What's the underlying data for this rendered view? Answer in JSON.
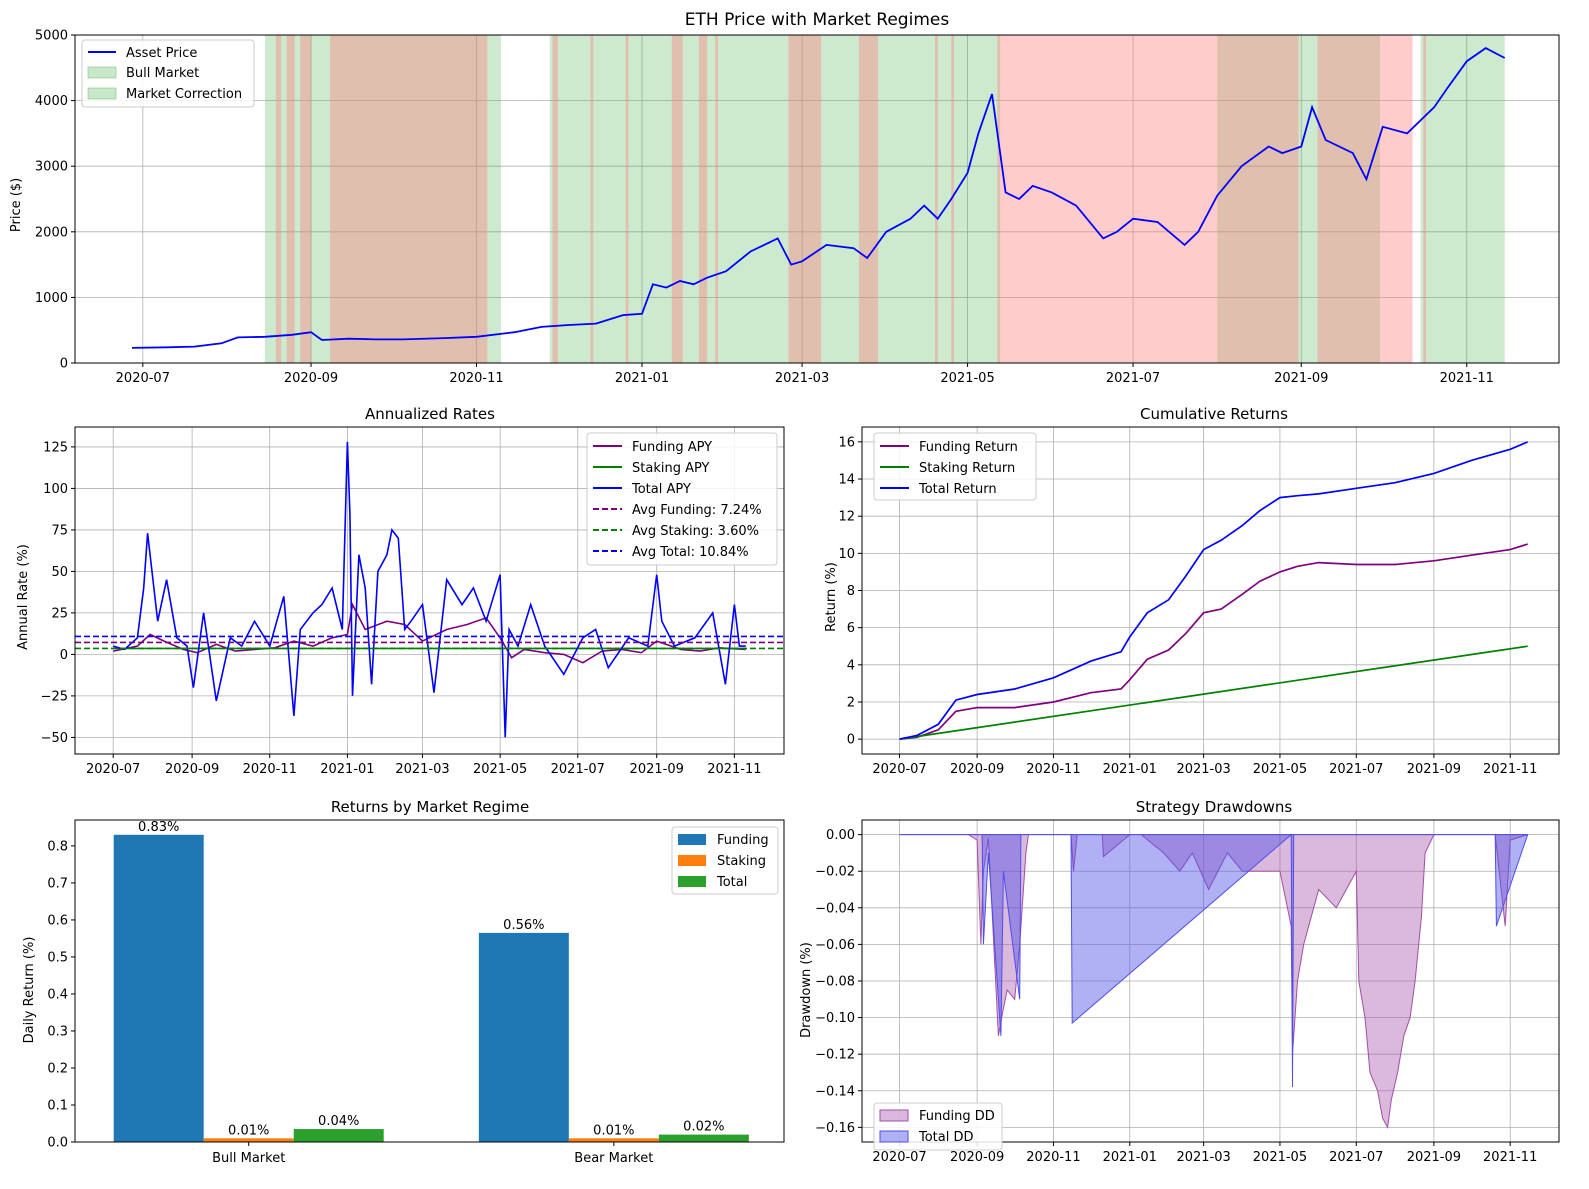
{
  "chart_data": [
    {
      "type": "line",
      "title": "ETH Price with Market Regimes",
      "xlabel": "",
      "ylabel": "Price ($)",
      "x_ticks": [
        "2020-07",
        "2020-09",
        "2020-11",
        "2021-01",
        "2021-03",
        "2021-05",
        "2021-07",
        "2021-09",
        "2021-11"
      ],
      "ylim": [
        0,
        5000
      ],
      "y_ticks": [
        0,
        1000,
        2000,
        3000,
        4000,
        5000
      ],
      "grid": true,
      "legend_position": "top-left",
      "legend": [
        "Asset Price",
        "Bull Market",
        "Market Correction"
      ],
      "colors": {
        "price": "#0000ff",
        "bull": "#4caf50",
        "correction": "#ff7f7f",
        "overlap": "#c8a791"
      },
      "series": [
        {
          "name": "Asset Price",
          "x": [
            "2020-06-27",
            "2020-07-10",
            "2020-07-20",
            "2020-07-30",
            "2020-08-05",
            "2020-08-15",
            "2020-08-25",
            "2020-09-01",
            "2020-09-05",
            "2020-09-15",
            "2020-09-25",
            "2020-10-05",
            "2020-10-20",
            "2020-11-01",
            "2020-11-15",
            "2020-11-25",
            "2020-12-05",
            "2020-12-15",
            "2020-12-25",
            "2021-01-01",
            "2021-01-05",
            "2021-01-10",
            "2021-01-15",
            "2021-01-20",
            "2021-01-25",
            "2021-02-01",
            "2021-02-10",
            "2021-02-20",
            "2021-02-25",
            "2021-03-01",
            "2021-03-10",
            "2021-03-20",
            "2021-03-25",
            "2021-04-01",
            "2021-04-10",
            "2021-04-15",
            "2021-04-20",
            "2021-04-25",
            "2021-05-01",
            "2021-05-05",
            "2021-05-10",
            "2021-05-15",
            "2021-05-20",
            "2021-05-25",
            "2021-06-01",
            "2021-06-10",
            "2021-06-20",
            "2021-06-25",
            "2021-07-01",
            "2021-07-10",
            "2021-07-20",
            "2021-07-25",
            "2021-08-01",
            "2021-08-10",
            "2021-08-20",
            "2021-08-25",
            "2021-09-01",
            "2021-09-05",
            "2021-09-10",
            "2021-09-20",
            "2021-09-25",
            "2021-10-01",
            "2021-10-10",
            "2021-10-20",
            "2021-10-25",
            "2021-11-01",
            "2021-11-08",
            "2021-11-15"
          ],
          "values": [
            230,
            240,
            250,
            300,
            390,
            400,
            430,
            470,
            350,
            370,
            360,
            360,
            380,
            400,
            470,
            550,
            580,
            600,
            730,
            750,
            1200,
            1150,
            1250,
            1200,
            1300,
            1400,
            1700,
            1900,
            1500,
            1550,
            1800,
            1750,
            1600,
            2000,
            2200,
            2400,
            2200,
            2500,
            2900,
            3500,
            4100,
            2600,
            2500,
            2700,
            2600,
            2400,
            1900,
            2000,
            2200,
            2150,
            1800,
            2000,
            2550,
            3000,
            3300,
            3200,
            3300,
            3900,
            3400,
            3200,
            2800,
            3600,
            3500,
            3900,
            4200,
            4600,
            4800,
            4650
          ]
        }
      ],
      "bull_market_periods": [
        [
          "2020-08-15",
          "2020-11-10"
        ],
        [
          "2020-11-28",
          "2021-05-13"
        ],
        [
          "2021-08-01",
          "2021-09-30"
        ],
        [
          "2021-10-15",
          "2021-11-15"
        ]
      ],
      "market_correction_periods": [
        [
          "2020-08-19",
          "2020-08-21"
        ],
        [
          "2020-08-23",
          "2020-08-26"
        ],
        [
          "2020-08-28",
          "2020-09-01"
        ],
        [
          "2020-09-08",
          "2020-10-20"
        ],
        [
          "2020-10-20",
          "2020-11-05"
        ],
        [
          "2020-11-29",
          "2020-12-01"
        ],
        [
          "2020-12-13",
          "2020-12-14"
        ],
        [
          "2020-12-26",
          "2020-12-27"
        ],
        [
          "2021-01-12",
          "2021-01-16"
        ],
        [
          "2021-01-22",
          "2021-01-25"
        ],
        [
          "2021-01-28",
          "2021-01-29"
        ],
        [
          "2021-02-24",
          "2021-03-08"
        ],
        [
          "2021-03-22",
          "2021-03-29"
        ],
        [
          "2021-04-19",
          "2021-04-20"
        ],
        [
          "2021-04-25",
          "2021-04-26"
        ],
        [
          "2021-05-12",
          "2021-06-01"
        ],
        [
          "2021-06-01",
          "2021-08-01"
        ],
        [
          "2021-08-01",
          "2021-08-31"
        ],
        [
          "2021-09-07",
          "2021-09-24"
        ],
        [
          "2021-09-24",
          "2021-10-12"
        ],
        [
          "2021-10-16",
          "2021-10-17"
        ]
      ]
    },
    {
      "type": "line",
      "title": "Annualized Rates",
      "xlabel": "",
      "ylabel": "Annual Rate (%)",
      "x_ticks": [
        "2020-07",
        "2020-09",
        "2020-11",
        "2021-01",
        "2021-03",
        "2021-05",
        "2021-07",
        "2021-09",
        "2021-11"
      ],
      "ylim": [
        -60,
        137
      ],
      "y_ticks": [
        -50,
        -25,
        0,
        25,
        50,
        75,
        100,
        125
      ],
      "grid": true,
      "legend_position": "top-right",
      "series": [
        {
          "name": "Funding APY",
          "color": "#800080",
          "x": [
            "2020-07-01",
            "2020-07-20",
            "2020-07-30",
            "2020-08-10",
            "2020-08-25",
            "2020-09-05",
            "2020-09-20",
            "2020-10-05",
            "2020-10-20",
            "2020-11-05",
            "2020-11-20",
            "2020-12-05",
            "2020-12-20",
            "2021-01-01",
            "2021-01-05",
            "2021-01-15",
            "2021-02-01",
            "2021-02-15",
            "2021-03-01",
            "2021-03-20",
            "2021-04-05",
            "2021-04-20",
            "2021-05-01",
            "2021-05-10",
            "2021-05-20",
            "2021-06-05",
            "2021-06-20",
            "2021-07-05",
            "2021-07-20",
            "2021-08-05",
            "2021-08-20",
            "2021-09-01",
            "2021-09-20",
            "2021-10-05",
            "2021-10-20",
            "2021-11-10"
          ],
          "values": [
            2,
            5,
            12,
            8,
            3,
            1,
            6,
            2,
            3,
            4,
            8,
            5,
            10,
            12,
            30,
            15,
            20,
            18,
            8,
            15,
            18,
            22,
            10,
            -2,
            3,
            1,
            0,
            -5,
            2,
            3,
            1,
            8,
            3,
            2,
            4,
            3
          ]
        },
        {
          "name": "Staking APY",
          "color": "#008000",
          "x": [
            "2020-07-01",
            "2021-11-10"
          ],
          "values": [
            3.6,
            3.6
          ]
        },
        {
          "name": "Total APY",
          "color": "#0000ff",
          "x": [
            "2020-07-01",
            "2020-07-10",
            "2020-07-20",
            "2020-07-25",
            "2020-07-28",
            "2020-08-05",
            "2020-08-12",
            "2020-08-20",
            "2020-08-28",
            "2020-09-02",
            "2020-09-10",
            "2020-09-20",
            "2020-10-01",
            "2020-10-10",
            "2020-10-20",
            "2020-11-01",
            "2020-11-12",
            "2020-11-20",
            "2020-11-25",
            "2020-12-05",
            "2020-12-12",
            "2020-12-20",
            "2020-12-28",
            "2021-01-01",
            "2021-01-03",
            "2021-01-05",
            "2021-01-10",
            "2021-01-15",
            "2021-01-20",
            "2021-01-25",
            "2021-02-01",
            "2021-02-05",
            "2021-02-10",
            "2021-02-15",
            "2021-02-20",
            "2021-03-01",
            "2021-03-10",
            "2021-03-20",
            "2021-04-01",
            "2021-04-10",
            "2021-04-20",
            "2021-05-01",
            "2021-05-05",
            "2021-05-08",
            "2021-05-15",
            "2021-05-25",
            "2021-06-05",
            "2021-06-20",
            "2021-07-05",
            "2021-07-15",
            "2021-07-25",
            "2021-08-10",
            "2021-08-25",
            "2021-09-01",
            "2021-09-05",
            "2021-09-15",
            "2021-10-01",
            "2021-10-15",
            "2021-10-25",
            "2021-11-01",
            "2021-11-05",
            "2021-11-10"
          ],
          "values": [
            5,
            3,
            10,
            40,
            73,
            20,
            45,
            10,
            5,
            -20,
            25,
            -28,
            10,
            5,
            20,
            5,
            35,
            -37,
            15,
            25,
            30,
            40,
            15,
            128,
            85,
            -25,
            60,
            40,
            -18,
            50,
            60,
            75,
            70,
            15,
            20,
            30,
            -23,
            45,
            30,
            40,
            20,
            48,
            -50,
            15,
            5,
            30,
            5,
            -12,
            10,
            15,
            -8,
            10,
            5,
            48,
            20,
            5,
            10,
            25,
            -18,
            30,
            5,
            5
          ]
        }
      ],
      "reference_lines": [
        {
          "label": "Avg Funding: 7.24%",
          "value": 7.24,
          "color": "#800080"
        },
        {
          "label": "Avg Staking: 3.60%",
          "value": 3.6,
          "color": "#008000"
        },
        {
          "label": "Avg Total: 10.84%",
          "value": 10.84,
          "color": "#0000ff"
        }
      ]
    },
    {
      "type": "line",
      "title": "Cumulative Returns",
      "xlabel": "",
      "ylabel": "Return (%)",
      "x_ticks": [
        "2020-07",
        "2020-09",
        "2020-11",
        "2021-01",
        "2021-03",
        "2021-05",
        "2021-07",
        "2021-09",
        "2021-11"
      ],
      "ylim": [
        -0.8,
        16.8
      ],
      "y_ticks": [
        0,
        2,
        4,
        6,
        8,
        10,
        12,
        14,
        16
      ],
      "grid": true,
      "legend_position": "top-left",
      "series": [
        {
          "name": "Funding Return",
          "color": "#800080",
          "x": [
            "2020-07-01",
            "2020-07-15",
            "2020-08-01",
            "2020-08-15",
            "2020-09-01",
            "2020-10-01",
            "2020-11-01",
            "2020-12-01",
            "2020-12-25",
            "2021-01-01",
            "2021-01-15",
            "2021-02-01",
            "2021-02-15",
            "2021-03-01",
            "2021-03-15",
            "2021-04-01",
            "2021-04-15",
            "2021-05-01",
            "2021-05-15",
            "2021-06-01",
            "2021-07-01",
            "2021-08-01",
            "2021-09-01",
            "2021-10-01",
            "2021-11-01",
            "2021-11-15"
          ],
          "values": [
            0,
            0.1,
            0.5,
            1.5,
            1.7,
            1.7,
            2.0,
            2.5,
            2.7,
            3.2,
            4.3,
            4.8,
            5.7,
            6.8,
            7.0,
            7.8,
            8.5,
            9.0,
            9.3,
            9.5,
            9.4,
            9.4,
            9.6,
            9.9,
            10.2,
            10.5
          ]
        },
        {
          "name": "Staking Return",
          "color": "#008000",
          "x": [
            "2020-07-01",
            "2021-11-15"
          ],
          "values": [
            0,
            5.0
          ]
        },
        {
          "name": "Total Return",
          "color": "#0000ff",
          "x": [
            "2020-07-01",
            "2020-07-15",
            "2020-08-01",
            "2020-08-15",
            "2020-09-01",
            "2020-10-01",
            "2020-11-01",
            "2020-12-01",
            "2020-12-25",
            "2021-01-01",
            "2021-01-15",
            "2021-02-01",
            "2021-02-15",
            "2021-03-01",
            "2021-03-15",
            "2021-04-01",
            "2021-04-15",
            "2021-05-01",
            "2021-05-15",
            "2021-06-01",
            "2021-07-01",
            "2021-08-01",
            "2021-09-01",
            "2021-10-01",
            "2021-11-01",
            "2021-11-15"
          ],
          "values": [
            0,
            0.2,
            0.8,
            2.1,
            2.4,
            2.7,
            3.3,
            4.2,
            4.7,
            5.5,
            6.8,
            7.5,
            8.8,
            10.2,
            10.7,
            11.5,
            12.3,
            13.0,
            13.1,
            13.2,
            13.5,
            13.8,
            14.3,
            15.0,
            15.6,
            16.0
          ]
        }
      ]
    },
    {
      "type": "bar",
      "title": "Returns by Market Regime",
      "xlabel": "",
      "ylabel": "Daily Return (%)",
      "categories": [
        "Bull Market",
        "Bear Market"
      ],
      "ylim": [
        0,
        0.87
      ],
      "y_ticks": [
        0.0,
        0.1,
        0.2,
        0.3,
        0.4,
        0.5,
        0.6,
        0.7,
        0.8
      ],
      "grid": false,
      "legend_position": "top-right",
      "series": [
        {
          "name": "Funding",
          "color": "#1f77b4",
          "values": [
            0.83,
            0.565
          ],
          "labels": [
            "0.83%",
            "0.56%"
          ]
        },
        {
          "name": "Staking",
          "color": "#ff7f0e",
          "values": [
            0.01,
            0.01
          ],
          "labels": [
            "0.01%",
            "0.01%"
          ]
        },
        {
          "name": "Total",
          "color": "#2ca02c",
          "values": [
            0.035,
            0.02
          ],
          "labels": [
            "0.04%",
            "0.02%"
          ]
        }
      ]
    },
    {
      "type": "area",
      "title": "Strategy Drawdowns",
      "xlabel": "",
      "ylabel": "Drawdown (%)",
      "x_ticks": [
        "2020-07",
        "2020-09",
        "2020-11",
        "2021-01",
        "2021-03",
        "2021-05",
        "2021-07",
        "2021-09",
        "2021-11"
      ],
      "ylim": [
        -0.168,
        0.008
      ],
      "y_ticks": [
        "0.00",
        "−0.02",
        "−0.04",
        "−0.06",
        "−0.08",
        "−0.10",
        "−0.12",
        "−0.14",
        "−0.16"
      ],
      "y_tick_values": [
        0,
        -0.02,
        -0.04,
        -0.06,
        -0.08,
        -0.1,
        -0.12,
        -0.14,
        -0.16
      ],
      "grid": true,
      "legend_position": "bottom-left",
      "series": [
        {
          "name": "Funding DD",
          "color": "#a24fa8",
          "x": [
            "2020-07-01",
            "2020-08-25",
            "2020-09-01",
            "2020-09-04",
            "2020-09-06",
            "2020-09-10",
            "2020-09-18",
            "2020-09-22",
            "2020-09-25",
            "2020-10-01",
            "2020-10-05",
            "2020-10-10",
            "2020-10-12",
            "2020-11-15",
            "2020-11-17",
            "2020-11-20",
            "2020-12-10",
            "2020-12-11",
            "2021-01-01",
            "2021-01-10",
            "2021-01-28",
            "2021-02-10",
            "2021-02-20",
            "2021-03-05",
            "2021-03-20",
            "2021-04-01",
            "2021-04-15",
            "2021-05-01",
            "2021-05-10",
            "2021-05-11",
            "2021-05-15",
            "2021-05-20",
            "2021-06-01",
            "2021-06-15",
            "2021-07-01",
            "2021-07-03",
            "2021-07-08",
            "2021-07-12",
            "2021-07-18",
            "2021-07-22",
            "2021-07-26",
            "2021-07-29",
            "2021-08-03",
            "2021-08-08",
            "2021-08-13",
            "2021-08-17",
            "2021-08-22",
            "2021-08-25",
            "2021-09-01",
            "2021-10-20",
            "2021-10-28",
            "2021-11-01",
            "2021-11-15"
          ],
          "values": [
            0,
            0,
            -0.003,
            -0.06,
            -0.02,
            -0.002,
            -0.11,
            -0.095,
            -0.085,
            -0.09,
            -0.06,
            -0.01,
            0,
            0,
            -0.02,
            0,
            0,
            -0.012,
            0,
            0,
            -0.01,
            -0.02,
            -0.01,
            -0.03,
            -0.01,
            -0.02,
            -0.02,
            -0.02,
            -0.05,
            -0.12,
            -0.08,
            -0.06,
            -0.03,
            -0.04,
            -0.02,
            -0.08,
            -0.1,
            -0.13,
            -0.14,
            -0.155,
            -0.16,
            -0.145,
            -0.13,
            -0.11,
            -0.1,
            -0.08,
            -0.045,
            -0.01,
            0,
            0,
            -0.05,
            -0.003,
            0
          ]
        },
        {
          "name": "Total DD",
          "color": "#4f4fe8",
          "x": [
            "2020-07-01",
            "2020-09-05",
            "2020-09-06",
            "2020-09-10",
            "2020-09-20",
            "2020-09-22",
            "2020-10-05",
            "2020-10-06",
            "2020-11-15",
            "2020-11-16",
            "2021-05-10",
            "2021-05-11",
            "2021-05-12",
            "2021-10-20",
            "2021-10-21",
            "2021-11-15"
          ],
          "values": [
            0,
            0,
            -0.06,
            -0.01,
            -0.11,
            -0.02,
            -0.09,
            0,
            0,
            -0.103,
            0,
            -0.138,
            0,
            0,
            -0.05,
            0
          ]
        }
      ]
    }
  ]
}
